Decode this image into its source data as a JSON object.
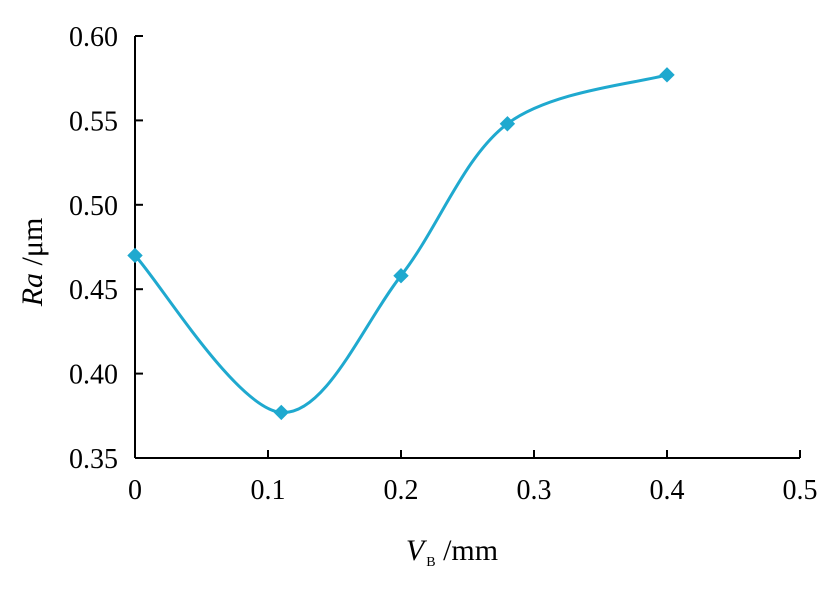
{
  "chart_data": {
    "type": "line",
    "title": "",
    "xlabel": {
      "symbol": "V",
      "subscript": "B",
      "unit": " /mm"
    },
    "ylabel": {
      "symbol": "Ra",
      "unit": " /μm"
    },
    "xlim": [
      0,
      0.5
    ],
    "ylim": [
      0.35,
      0.6
    ],
    "xticks": [
      "0",
      "0.1",
      "0.2",
      "0.3",
      "0.4",
      "0.5"
    ],
    "yticks": [
      "0.35",
      "0.40",
      "0.45",
      "0.50",
      "0.55",
      "0.60"
    ],
    "grid": false,
    "legend": "none",
    "smooth": true,
    "series": [
      {
        "color": "#1fa9cf",
        "marker": "diamond",
        "x": [
          0,
          0.11,
          0.2,
          0.28,
          0.4
        ],
        "y": [
          0.47,
          0.377,
          0.458,
          0.548,
          0.577
        ]
      }
    ]
  }
}
